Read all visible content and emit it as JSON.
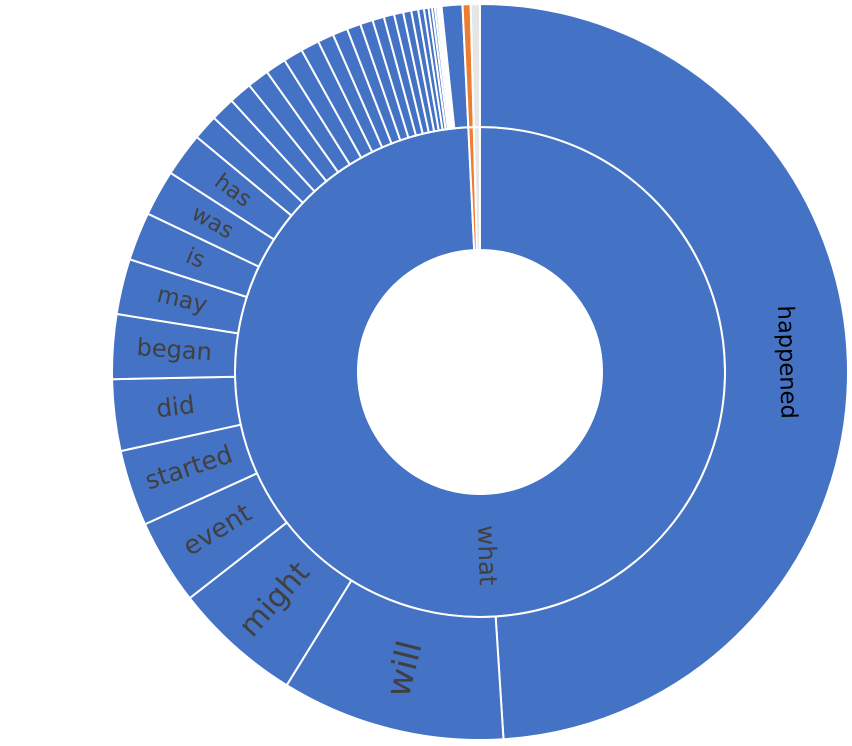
{
  "chart_data": {
    "type": "sunburst",
    "nodes": [
      {
        "name": "what",
        "color": "#4472C4",
        "children": [
          {
            "name": "happened",
            "value": 48.4
          },
          {
            "name": "will",
            "value": 9.7
          },
          {
            "name": "might",
            "value": 5.6
          },
          {
            "name": "event",
            "value": 3.7
          },
          {
            "name": "started",
            "value": 3.3
          },
          {
            "name": "did",
            "value": 3.1
          },
          {
            "name": "began",
            "value": 2.8
          },
          {
            "name": "may",
            "value": 2.4
          },
          {
            "name": "is",
            "value": 2.1
          },
          {
            "name": "was",
            "value": 2.0
          },
          {
            "name": "has",
            "value": 1.9
          },
          {
            "name": null,
            "value": 1.1
          },
          {
            "name": null,
            "value": 1.05
          },
          {
            "name": null,
            "value": 1.0
          },
          {
            "name": null,
            "value": 0.95
          },
          {
            "name": null,
            "value": 0.9
          },
          {
            "name": null,
            "value": 0.85
          },
          {
            "name": null,
            "value": 0.8
          },
          {
            "name": null,
            "value": 0.7
          },
          {
            "name": null,
            "value": 0.65
          },
          {
            "name": null,
            "value": 0.6
          },
          {
            "name": null,
            "value": 0.55
          },
          {
            "name": null,
            "value": 0.5
          },
          {
            "name": null,
            "value": 0.45
          },
          {
            "name": null,
            "value": 0.4
          },
          {
            "name": null,
            "value": 0.35
          },
          {
            "name": null,
            "value": 0.3
          },
          {
            "name": null,
            "value": 0.25
          },
          {
            "name": null,
            "value": 0.2
          },
          {
            "name": null,
            "value": 0.15
          },
          {
            "name": null,
            "value": 0.12
          },
          {
            "name": null,
            "value": 0.1
          },
          {
            "name": null,
            "value": 0.08
          },
          {
            "name": null,
            "value": 0.06
          },
          {
            "name": null,
            "value": 0.05
          },
          {
            "name": null,
            "value": 0.9
          }
        ]
      },
      {
        "name": null,
        "color": "#ED7D31",
        "children": [
          {
            "name": null,
            "value": 0.35
          }
        ]
      },
      {
        "name": null,
        "color": "#E7E6E6",
        "children": [
          {
            "name": null,
            "value": 0.4
          }
        ]
      }
    ]
  }
}
